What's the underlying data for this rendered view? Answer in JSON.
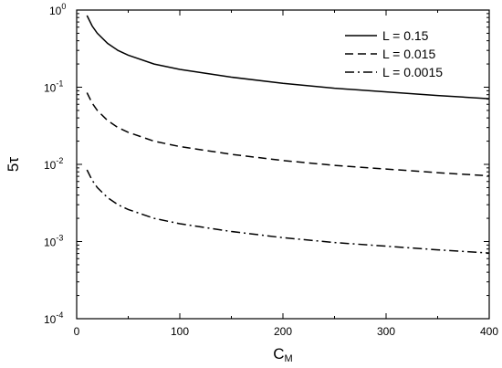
{
  "chart_data": {
    "type": "line",
    "x_scale": "linear",
    "y_scale": "log",
    "xlabel_main": "C",
    "xlabel_sub": "M",
    "ylabel": "5τ",
    "xlim": [
      0,
      400
    ],
    "ylim": [
      0.0001,
      1
    ],
    "grid": false,
    "legend_position": "top-right",
    "x_ticks": [
      {
        "value": 0,
        "label": "0"
      },
      {
        "value": 100,
        "label": "100"
      },
      {
        "value": 200,
        "label": "200"
      },
      {
        "value": 300,
        "label": "300"
      },
      {
        "value": 400,
        "label": "400"
      }
    ],
    "y_ticks": [
      {
        "value": 0.0001,
        "base": "10",
        "exp": "-4"
      },
      {
        "value": 0.001,
        "base": "10",
        "exp": "-3"
      },
      {
        "value": 0.01,
        "base": "10",
        "exp": "-2"
      },
      {
        "value": 0.1,
        "base": "10",
        "exp": "-1"
      },
      {
        "value": 1,
        "base": "10",
        "exp": "0"
      }
    ],
    "x": [
      10,
      15,
      20,
      30,
      40,
      50,
      75,
      100,
      150,
      200,
      250,
      300,
      350,
      400
    ],
    "series": [
      {
        "name": "L = 0.15",
        "dash": "solid",
        "values": [
          0.85,
          0.62,
          0.5,
          0.37,
          0.3,
          0.26,
          0.2,
          0.17,
          0.135,
          0.112,
          0.097,
          0.087,
          0.078,
          0.071
        ]
      },
      {
        "name": "L = 0.015",
        "dash": "dashed",
        "values": [
          0.085,
          0.062,
          0.05,
          0.037,
          0.03,
          0.026,
          0.02,
          0.017,
          0.0135,
          0.0112,
          0.0097,
          0.0087,
          0.0078,
          0.0071
        ]
      },
      {
        "name": "L = 0.0015",
        "dash": "dashdot",
        "values": [
          0.0085,
          0.0062,
          0.005,
          0.0037,
          0.003,
          0.0026,
          0.002,
          0.0017,
          0.00135,
          0.00112,
          0.00097,
          0.00087,
          0.00078,
          0.00071
        ]
      }
    ],
    "colors": {
      "lines": "#000000",
      "frame": "#000000",
      "background": "#ffffff"
    }
  }
}
